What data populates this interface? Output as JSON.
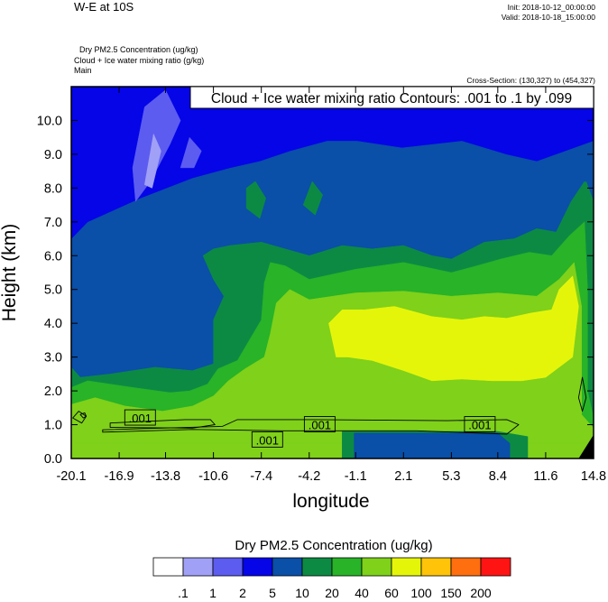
{
  "header": {
    "title": "W-E at 10S",
    "init": "Init: 2018-10-12_00:00:00",
    "valid": "Valid: 2018-10-18_15:00:00",
    "var_line_1": "Dry PM2.5 Concentration   (ug/kg)",
    "var_line_2": "Cloud + Ice water mixing ratio   (g/kg)",
    "var_line_3": "Main",
    "cross_section": "Cross-Section: (130,327) to (454,327)"
  },
  "chart_data": {
    "type": "heatmap",
    "title": "",
    "contour_label": "Cloud + Ice water mixing ratio Contours: .001 to .1 by .099",
    "xlabel": "longitude",
    "ylabel": "Height (km)",
    "xlim": [
      -20.1,
      14.8
    ],
    "ylim": [
      0.0,
      11.0
    ],
    "x_ticks": [
      -20.1,
      -16.9,
      -13.8,
      -10.6,
      -7.4,
      -4.2,
      -1.1,
      2.1,
      5.3,
      8.4,
      11.6,
      14.8
    ],
    "x_tick_labels": [
      "-20.1",
      "-16.9",
      "-13.8",
      "-10.6",
      "-7.4",
      "-4.2",
      "-1.1",
      "2.1",
      "5.3",
      "8.4",
      "11.6",
      "14.8"
    ],
    "y_ticks": [
      0.0,
      1.0,
      2.0,
      3.0,
      4.0,
      5.0,
      6.0,
      7.0,
      8.0,
      9.0,
      10.0
    ],
    "y_tick_labels": [
      "0.0",
      "1.0",
      "2.0",
      "3.0",
      "4.0",
      "5.0",
      "6.0",
      "7.0",
      "8.0",
      "9.0",
      "10.0"
    ],
    "contour_labels": [
      {
        "text": ".001",
        "x": -15.5,
        "y": 1.2
      },
      {
        "text": ".001",
        "x": -7.0,
        "y": 0.55
      },
      {
        "text": ".001",
        "x": -3.5,
        "y": 1.0
      },
      {
        "text": ".001",
        "x": 7.2,
        "y": 1.0
      }
    ],
    "colorbar": {
      "title": "Dry PM2.5 Concentration  (ug/kg)",
      "labels": [
        ".1",
        "1",
        "2",
        "5",
        "10",
        "20",
        "40",
        "60",
        "100",
        "150",
        "200"
      ],
      "colors": [
        "#ffffff",
        "#a0a0f7",
        "#5c5cf0",
        "#0505e8",
        "#0a4fa8",
        "#0c8a44",
        "#28b328",
        "#7fd11a",
        "#e5f50a",
        "#ffc40a",
        "#ff6e0f",
        "#ff1414"
      ]
    },
    "regions": [
      {
        "level": 4,
        "poly": [
          [
            -20.1,
            0.8
          ],
          [
            14.8,
            0.8
          ],
          [
            14.8,
            11.0
          ],
          [
            -20.1,
            11.0
          ]
        ]
      },
      {
        "level": 3,
        "poly": [
          [
            -20.1,
            6.5
          ],
          [
            -19.0,
            7.0
          ],
          [
            -15.5,
            7.7
          ],
          [
            -12.0,
            8.3
          ],
          [
            -9.5,
            8.6
          ],
          [
            -7.5,
            8.8
          ],
          [
            -5.5,
            9.1
          ],
          [
            -3.0,
            9.4
          ],
          [
            -1.0,
            9.4
          ],
          [
            2.0,
            9.2
          ],
          [
            6.0,
            9.4
          ],
          [
            9.0,
            9.0
          ],
          [
            11.0,
            8.8
          ],
          [
            14.8,
            9.4
          ],
          [
            14.8,
            11.0
          ],
          [
            -20.1,
            11.0
          ]
        ]
      },
      {
        "level": 2,
        "poly": [
          [
            -16.0,
            8.6
          ],
          [
            -15.2,
            10.4
          ],
          [
            -13.8,
            10.9
          ],
          [
            -12.8,
            10.0
          ],
          [
            -13.5,
            9.3
          ],
          [
            -14.8,
            8.2
          ],
          [
            -15.8,
            7.6
          ]
        ]
      },
      {
        "level": 1,
        "poly": [
          [
            -15.2,
            8.1
          ],
          [
            -14.6,
            9.6
          ],
          [
            -14.1,
            9.1
          ],
          [
            -14.7,
            8.0
          ]
        ]
      },
      {
        "level": 2,
        "poly": [
          [
            -12.8,
            8.6
          ],
          [
            -12.2,
            9.5
          ],
          [
            -11.4,
            9.1
          ],
          [
            -11.9,
            8.6
          ]
        ]
      },
      {
        "level": 5,
        "poly": [
          [
            -8.4,
            7.4
          ],
          [
            -8.4,
            8.0
          ],
          [
            -7.8,
            8.2
          ],
          [
            -7.1,
            7.7
          ],
          [
            -7.5,
            7.1
          ]
        ]
      },
      {
        "level": 5,
        "poly": [
          [
            -4.6,
            7.5
          ],
          [
            -4.0,
            8.2
          ],
          [
            -3.3,
            7.8
          ],
          [
            -3.8,
            7.2
          ]
        ]
      },
      {
        "level": 5,
        "poly": [
          [
            13.0,
            6.5
          ],
          [
            13.6,
            7.8
          ],
          [
            14.3,
            8.2
          ],
          [
            14.8,
            7.6
          ],
          [
            14.8,
            6.0
          ],
          [
            14.2,
            5.6
          ]
        ]
      },
      {
        "level": 5,
        "poly": [
          [
            -20.1,
            0.0
          ],
          [
            -20.1,
            2.7
          ],
          [
            -19.5,
            2.4
          ],
          [
            -17.5,
            2.5
          ],
          [
            -14.5,
            2.7
          ],
          [
            -12.0,
            2.6
          ],
          [
            -10.6,
            2.8
          ],
          [
            -10.6,
            4.1
          ],
          [
            -9.9,
            4.8
          ],
          [
            -10.6,
            5.3
          ],
          [
            -11.3,
            6.0
          ],
          [
            -10.6,
            6.2
          ],
          [
            -9.5,
            6.3
          ],
          [
            -7.4,
            6.4
          ],
          [
            -5.8,
            6.2
          ],
          [
            -4.2,
            6.0
          ],
          [
            -2.0,
            6.3
          ],
          [
            0.0,
            6.2
          ],
          [
            2.1,
            6.3
          ],
          [
            4.0,
            6.0
          ],
          [
            5.3,
            5.9
          ],
          [
            7.5,
            6.4
          ],
          [
            9.5,
            6.5
          ],
          [
            11.0,
            6.8
          ],
          [
            12.3,
            6.7
          ],
          [
            13.3,
            7.6
          ],
          [
            14.2,
            8.2
          ],
          [
            14.8,
            7.5
          ],
          [
            14.8,
            0.0
          ]
        ]
      },
      {
        "level": 6,
        "poly": [
          [
            -20.1,
            0.0
          ],
          [
            -20.1,
            2.1
          ],
          [
            -19.0,
            2.3
          ],
          [
            -16.0,
            2.1
          ],
          [
            -13.5,
            1.95
          ],
          [
            -12.2,
            2.0
          ],
          [
            -11.0,
            2.2
          ],
          [
            -10.3,
            2.65
          ],
          [
            -9.0,
            2.9
          ],
          [
            -8.2,
            3.5
          ],
          [
            -7.4,
            4.1
          ],
          [
            -7.2,
            5.2
          ],
          [
            -6.8,
            5.8
          ],
          [
            -5.8,
            5.7
          ],
          [
            -4.2,
            5.3
          ],
          [
            -1.1,
            5.6
          ],
          [
            2.1,
            5.8
          ],
          [
            5.3,
            5.5
          ],
          [
            7.0,
            5.7
          ],
          [
            8.6,
            5.9
          ],
          [
            10.5,
            6.1
          ],
          [
            12.0,
            6.0
          ],
          [
            13.2,
            6.6
          ],
          [
            14.2,
            7.0
          ],
          [
            14.4,
            5.0
          ],
          [
            14.4,
            2.0
          ],
          [
            14.8,
            1.2
          ],
          [
            14.8,
            0.0
          ]
        ]
      },
      {
        "level": 7,
        "poly": [
          [
            -20.1,
            0.0
          ],
          [
            -20.1,
            1.6
          ],
          [
            -18.5,
            1.8
          ],
          [
            -16.5,
            1.55
          ],
          [
            -14.0,
            1.4
          ],
          [
            -12.0,
            1.55
          ],
          [
            -10.6,
            1.85
          ],
          [
            -9.6,
            2.3
          ],
          [
            -8.5,
            2.65
          ],
          [
            -7.2,
            3.0
          ],
          [
            -6.8,
            3.7
          ],
          [
            -6.4,
            4.6
          ],
          [
            -5.5,
            5.0
          ],
          [
            -4.2,
            4.7
          ],
          [
            -1.1,
            4.9
          ],
          [
            2.1,
            4.95
          ],
          [
            5.3,
            4.8
          ],
          [
            8.4,
            4.9
          ],
          [
            11.0,
            4.8
          ],
          [
            12.5,
            5.3
          ],
          [
            13.5,
            5.8
          ],
          [
            14.0,
            4.5
          ],
          [
            14.0,
            1.3
          ],
          [
            14.8,
            0.9
          ],
          [
            14.8,
            0.0
          ]
        ]
      },
      {
        "level": 8,
        "poly": [
          [
            -2.4,
            3.0
          ],
          [
            -2.9,
            4.0
          ],
          [
            -2.0,
            4.4
          ],
          [
            -0.5,
            4.4
          ],
          [
            1.5,
            4.5
          ],
          [
            4.0,
            4.2
          ],
          [
            6.0,
            4.1
          ],
          [
            7.5,
            4.2
          ],
          [
            9.0,
            4.15
          ],
          [
            10.6,
            4.3
          ],
          [
            12.0,
            4.4
          ],
          [
            12.5,
            5.0
          ],
          [
            13.4,
            5.4
          ],
          [
            13.8,
            4.5
          ],
          [
            13.4,
            3.0
          ],
          [
            11.6,
            2.4
          ],
          [
            10.0,
            2.3
          ],
          [
            8.0,
            2.3
          ],
          [
            6.0,
            2.35
          ],
          [
            4.0,
            2.3
          ],
          [
            2.1,
            2.6
          ],
          [
            0.0,
            2.9
          ],
          [
            -1.6,
            3.0
          ]
        ]
      },
      {
        "level": 7,
        "poly": [
          [
            -20.1,
            0.0
          ],
          [
            14.8,
            0.0
          ],
          [
            14.8,
            0.45
          ],
          [
            -20.1,
            0.45
          ]
        ]
      },
      {
        "level": 5,
        "poly": [
          [
            -2.0,
            0.0
          ],
          [
            -2.0,
            0.8
          ],
          [
            8.4,
            0.8
          ],
          [
            10.4,
            0.65
          ],
          [
            10.4,
            0.0
          ]
        ]
      },
      {
        "level": 4,
        "poly": [
          [
            -1.2,
            0.0
          ],
          [
            -1.2,
            0.75
          ],
          [
            8.4,
            0.75
          ],
          [
            9.2,
            0.45
          ],
          [
            9.2,
            0.0
          ]
        ]
      }
    ],
    "contours": [
      [
        [
          -18.0,
          0.85
        ],
        [
          -10.0,
          0.95
        ],
        [
          -9.0,
          1.15
        ],
        [
          -4.0,
          1.15
        ],
        [
          5.0,
          1.12
        ],
        [
          9.0,
          1.15
        ],
        [
          9.8,
          1.0
        ],
        [
          9.0,
          0.72
        ],
        [
          3.0,
          0.82
        ],
        [
          -6.0,
          0.82
        ],
        [
          -12.0,
          0.86
        ],
        [
          -18.0,
          0.78
        ]
      ],
      [
        [
          -17.5,
          1.05
        ],
        [
          -12.5,
          1.15
        ],
        [
          -10.8,
          1.15
        ],
        [
          -10.5,
          1.0
        ],
        [
          -12.0,
          0.9
        ],
        [
          -17.5,
          0.92
        ]
      ],
      [
        [
          -20.0,
          1.2
        ],
        [
          -19.6,
          1.4
        ],
        [
          -19.1,
          1.25
        ],
        [
          -19.4,
          1.05
        ]
      ],
      [
        [
          -19.5,
          1.3
        ],
        [
          -19.2,
          1.35
        ],
        [
          -19.1,
          1.25
        ],
        [
          -19.3,
          1.2
        ]
      ],
      [
        [
          13.8,
          1.8
        ],
        [
          14.05,
          2.4
        ],
        [
          14.3,
          1.8
        ],
        [
          14.05,
          1.4
        ]
      ]
    ],
    "corner_mask": [
      [
        13.8,
        0.0
      ],
      [
        14.8,
        0.0
      ],
      [
        14.8,
        0.7
      ]
    ]
  }
}
